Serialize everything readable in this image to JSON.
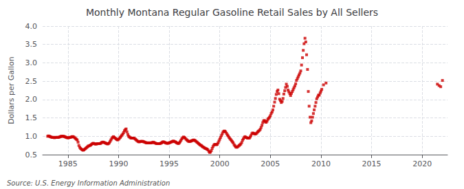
{
  "chart_data": {
    "type": "scatter",
    "title": "Monthly Montana Regular Gasoline Retail Sales by All Sellers",
    "y_label": "Dollars per Gallon",
    "annotations": [
      "Source: U.S. Energy Information Administration"
    ],
    "color": "#cc0000",
    "marker": "square",
    "grid": true,
    "xlim": [
      1982.5,
      2022.5
    ],
    "ylim": [
      0.5,
      4.0
    ],
    "xticks": [
      1985,
      1990,
      1995,
      2000,
      2005,
      2010,
      2015,
      2020
    ],
    "yticks": [
      0.5,
      {
        "value": 1.0,
        "label": "1.0"
      },
      1.5,
      {
        "value": 2.0,
        "label": "2.0"
      },
      2.5,
      {
        "value": 3.0,
        "label": "3.0"
      },
      3.5,
      {
        "value": 4.0,
        "label": "4.0"
      }
    ],
    "x": [
      1983.0,
      1983.08,
      1983.17,
      1983.25,
      1983.33,
      1983.42,
      1983.5,
      1983.58,
      1983.67,
      1983.75,
      1983.83,
      1983.92,
      1984.0,
      1984.08,
      1984.17,
      1984.25,
      1984.33,
      1984.42,
      1984.5,
      1984.58,
      1984.67,
      1984.75,
      1984.83,
      1984.92,
      1985.0,
      1985.08,
      1985.17,
      1985.25,
      1985.33,
      1985.42,
      1985.5,
      1985.58,
      1985.67,
      1985.75,
      1985.83,
      1985.92,
      1986.0,
      1986.08,
      1986.17,
      1986.25,
      1986.33,
      1986.42,
      1986.5,
      1986.58,
      1986.67,
      1986.75,
      1986.83,
      1986.92,
      1987.0,
      1987.08,
      1987.17,
      1987.25,
      1987.33,
      1987.42,
      1987.5,
      1987.58,
      1987.67,
      1987.75,
      1987.83,
      1987.92,
      1988.0,
      1988.08,
      1988.17,
      1988.25,
      1988.33,
      1988.42,
      1988.5,
      1988.58,
      1988.67,
      1988.75,
      1988.83,
      1988.92,
      1989.0,
      1989.08,
      1989.17,
      1989.25,
      1989.33,
      1989.42,
      1989.5,
      1989.58,
      1989.67,
      1989.75,
      1989.83,
      1989.92,
      1990.0,
      1990.08,
      1990.17,
      1990.25,
      1990.33,
      1990.42,
      1990.5,
      1990.58,
      1990.67,
      1990.75,
      1990.83,
      1990.92,
      1991.0,
      1991.08,
      1991.17,
      1991.25,
      1991.33,
      1991.42,
      1991.5,
      1991.58,
      1991.67,
      1991.75,
      1991.83,
      1991.92,
      1992.0,
      1992.08,
      1992.17,
      1992.25,
      1992.33,
      1992.42,
      1992.5,
      1992.58,
      1992.67,
      1992.75,
      1992.83,
      1992.92,
      1993.0,
      1993.08,
      1993.17,
      1993.25,
      1993.33,
      1993.42,
      1993.5,
      1993.58,
      1993.67,
      1993.75,
      1993.83,
      1993.92,
      1994.0,
      1994.08,
      1994.17,
      1994.25,
      1994.33,
      1994.42,
      1994.5,
      1994.58,
      1994.67,
      1994.75,
      1994.83,
      1994.92,
      1995.0,
      1995.08,
      1995.17,
      1995.25,
      1995.33,
      1995.42,
      1995.5,
      1995.58,
      1995.67,
      1995.75,
      1995.83,
      1995.92,
      1996.0,
      1996.08,
      1996.17,
      1996.25,
      1996.33,
      1996.42,
      1996.5,
      1996.58,
      1996.67,
      1996.75,
      1996.83,
      1996.92,
      1997.0,
      1997.08,
      1997.17,
      1997.25,
      1997.33,
      1997.42,
      1997.5,
      1997.58,
      1997.67,
      1997.75,
      1997.83,
      1997.92,
      1998.0,
      1998.08,
      1998.17,
      1998.25,
      1998.33,
      1998.42,
      1998.5,
      1998.58,
      1998.67,
      1998.75,
      1998.83,
      1998.92,
      1999.0,
      1999.08,
      1999.17,
      1999.25,
      1999.33,
      1999.42,
      1999.5,
      1999.58,
      1999.67,
      1999.75,
      1999.83,
      1999.92,
      2000.0,
      2000.08,
      2000.17,
      2000.25,
      2000.33,
      2000.42,
      2000.5,
      2000.58,
      2000.67,
      2000.75,
      2000.83,
      2000.92,
      2001.0,
      2001.08,
      2001.17,
      2001.25,
      2001.33,
      2001.42,
      2001.5,
      2001.58,
      2001.67,
      2001.75,
      2001.83,
      2001.92,
      2002.0,
      2002.08,
      2002.17,
      2002.25,
      2002.33,
      2002.42,
      2002.5,
      2002.58,
      2002.67,
      2002.75,
      2002.83,
      2002.92,
      2003.0,
      2003.08,
      2003.17,
      2003.25,
      2003.33,
      2003.42,
      2003.5,
      2003.58,
      2003.67,
      2003.75,
      2003.83,
      2003.92,
      2004.0,
      2004.08,
      2004.17,
      2004.25,
      2004.33,
      2004.42,
      2004.5,
      2004.58,
      2004.67,
      2004.75,
      2004.83,
      2004.92,
      2005.0,
      2005.08,
      2005.17,
      2005.25,
      2005.33,
      2005.42,
      2005.5,
      2005.58,
      2005.67,
      2005.75,
      2005.83,
      2005.92,
      2006.0,
      2006.08,
      2006.17,
      2006.25,
      2006.33,
      2006.42,
      2006.5,
      2006.58,
      2006.67,
      2006.75,
      2006.83,
      2006.92,
      2007.0,
      2007.08,
      2007.17,
      2007.25,
      2007.33,
      2007.42,
      2007.5,
      2007.58,
      2007.67,
      2007.75,
      2007.83,
      2007.92,
      2008.0,
      2008.08,
      2008.17,
      2008.25,
      2008.33,
      2008.42,
      2008.5,
      2008.58,
      2008.67,
      2008.75,
      2008.83,
      2008.92,
      2009.0,
      2009.08,
      2009.17,
      2009.25,
      2009.33,
      2009.42,
      2009.5,
      2009.58,
      2009.67,
      2009.75,
      2009.83,
      2009.92,
      2010.0,
      2010.08,
      2010.25,
      2010.5,
      2021.5,
      2021.67,
      2021.83,
      2022.0
    ],
    "values": [
      1.0,
      1.01,
      1.0,
      0.99,
      0.98,
      0.97,
      0.97,
      0.97,
      0.96,
      0.97,
      0.97,
      0.97,
      0.97,
      0.97,
      0.98,
      0.99,
      1.0,
      1.0,
      1.0,
      1.0,
      0.99,
      0.98,
      0.97,
      0.96,
      0.96,
      0.96,
      0.97,
      0.97,
      0.98,
      0.99,
      0.99,
      0.98,
      0.96,
      0.94,
      0.92,
      0.9,
      0.84,
      0.75,
      0.7,
      0.67,
      0.65,
      0.63,
      0.62,
      0.63,
      0.65,
      0.67,
      0.69,
      0.71,
      0.73,
      0.74,
      0.75,
      0.76,
      0.78,
      0.8,
      0.81,
      0.8,
      0.79,
      0.79,
      0.79,
      0.8,
      0.8,
      0.8,
      0.8,
      0.81,
      0.83,
      0.84,
      0.84,
      0.83,
      0.82,
      0.81,
      0.8,
      0.79,
      0.8,
      0.82,
      0.86,
      0.9,
      0.94,
      0.97,
      0.99,
      0.97,
      0.95,
      0.93,
      0.91,
      0.9,
      0.92,
      0.94,
      0.97,
      1.0,
      1.03,
      1.06,
      1.1,
      1.15,
      1.18,
      1.2,
      1.12,
      1.05,
      1.0,
      0.98,
      0.96,
      0.95,
      0.95,
      0.95,
      0.95,
      0.94,
      0.92,
      0.9,
      0.88,
      0.86,
      0.85,
      0.85,
      0.86,
      0.86,
      0.86,
      0.86,
      0.85,
      0.84,
      0.83,
      0.82,
      0.82,
      0.82,
      0.82,
      0.82,
      0.82,
      0.82,
      0.83,
      0.84,
      0.83,
      0.82,
      0.81,
      0.8,
      0.8,
      0.8,
      0.8,
      0.8,
      0.81,
      0.82,
      0.84,
      0.85,
      0.84,
      0.83,
      0.82,
      0.81,
      0.81,
      0.81,
      0.82,
      0.83,
      0.84,
      0.85,
      0.86,
      0.87,
      0.86,
      0.85,
      0.84,
      0.82,
      0.81,
      0.8,
      0.82,
      0.85,
      0.89,
      0.93,
      0.96,
      0.98,
      0.97,
      0.95,
      0.92,
      0.9,
      0.88,
      0.86,
      0.86,
      0.86,
      0.87,
      0.88,
      0.89,
      0.9,
      0.89,
      0.88,
      0.86,
      0.84,
      0.82,
      0.8,
      0.78,
      0.76,
      0.75,
      0.73,
      0.71,
      0.7,
      0.68,
      0.67,
      0.66,
      0.65,
      0.63,
      0.59,
      0.56,
      0.57,
      0.61,
      0.67,
      0.72,
      0.76,
      0.78,
      0.78,
      0.77,
      0.78,
      0.82,
      0.87,
      0.92,
      0.97,
      1.02,
      1.07,
      1.12,
      1.14,
      1.14,
      1.12,
      1.08,
      1.04,
      1.01,
      0.97,
      0.94,
      0.91,
      0.88,
      0.85,
      0.82,
      0.77,
      0.74,
      0.71,
      0.7,
      0.71,
      0.73,
      0.75,
      0.77,
      0.79,
      0.83,
      0.89,
      0.93,
      0.97,
      0.99,
      0.97,
      0.96,
      0.95,
      0.95,
      0.95,
      0.98,
      1.02,
      1.07,
      1.09,
      1.08,
      1.07,
      1.06,
      1.07,
      1.09,
      1.12,
      1.14,
      1.16,
      1.19,
      1.24,
      1.3,
      1.37,
      1.42,
      1.43,
      1.4,
      1.38,
      1.41,
      1.46,
      1.49,
      1.52,
      1.56,
      1.62,
      1.66,
      1.72,
      1.82,
      1.93,
      2.03,
      2.14,
      2.22,
      2.26,
      2.16,
      2.01,
      1.97,
      1.92,
      1.95,
      2.03,
      2.15,
      2.24,
      2.33,
      2.42,
      2.36,
      2.26,
      2.21,
      2.16,
      2.11,
      2.17,
      2.22,
      2.27,
      2.32,
      2.37,
      2.43,
      2.52,
      2.57,
      2.62,
      2.67,
      2.72,
      2.78,
      2.94,
      3.14,
      3.34,
      3.52,
      3.67,
      3.57,
      3.22,
      2.82,
      2.22,
      1.82,
      1.52,
      1.37,
      1.42,
      1.52,
      1.62,
      1.72,
      1.82,
      1.92,
      2.02,
      2.07,
      2.12,
      2.12,
      2.18,
      2.23,
      2.28,
      2.4,
      2.45,
      2.42,
      2.38,
      2.35,
      2.52
    ]
  }
}
